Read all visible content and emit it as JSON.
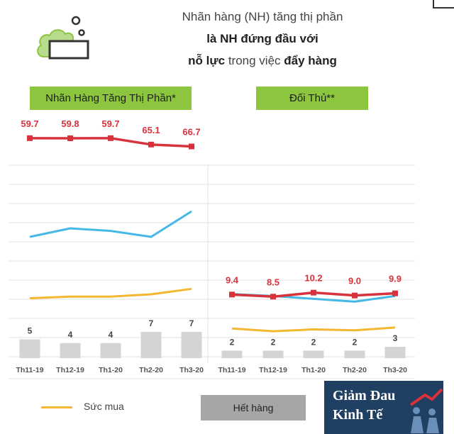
{
  "headline": {
    "line1": "Nhãn hàng (NH) tăng thị phần",
    "line2_bold": "là NH đứng đầu với",
    "line3_bold_a": "nỗ lực",
    "line3_mid": " trong việc ",
    "line3_bold_b": "đẩy hàng"
  },
  "panels": {
    "left_label": "Nhãn Hàng Tăng Thị Phần*",
    "right_label": "Đối Thủ**"
  },
  "legend": {
    "line_label": "Sức mua",
    "box_label": "Hết hàng"
  },
  "brand": {
    "line1": "Giảm Đau",
    "line2": "Kinh Tế"
  },
  "colors": {
    "market_share": "#d8323c",
    "blue_series": "#44b9e6",
    "purchasing_power": "#f5b731",
    "stockout": "#d4d4d4",
    "panel_label": "#8cc63f",
    "brand_bg": "#1f3f63"
  },
  "chart_data": [
    {
      "type": "line",
      "panel": "Nhãn Hàng Tăng Thị Phần*",
      "categories": [
        "Th11-19",
        "Th12-19",
        "Th1-20",
        "Th2-20",
        "Th3-20"
      ],
      "series": [
        {
          "kind": "line",
          "color": "#d8323c",
          "values": [
            59.7,
            59.8,
            59.7,
            65.1,
            66.7
          ],
          "labels": [
            "59.7",
            "59.8",
            "59.7",
            "65.1",
            "66.7"
          ]
        },
        {
          "kind": "line",
          "color": "#44b9e6",
          "values": [
            55,
            65,
            62,
            55,
            85
          ]
        },
        {
          "kind": "line",
          "name": "Sức mua",
          "color": "#f5b731",
          "values": [
            25,
            27,
            27,
            30,
            37
          ]
        },
        {
          "kind": "bar",
          "name": "Hết hàng",
          "color": "#d4d4d4",
          "values": [
            5,
            4,
            4,
            7,
            7
          ],
          "labels": [
            "5",
            "4",
            "4",
            "7",
            "7"
          ]
        }
      ],
      "grid": true
    },
    {
      "type": "line",
      "panel": "Đối Thủ**",
      "categories": [
        "Th11-19",
        "Th12-19",
        "Th1-20",
        "Th2-20",
        "Th3-20"
      ],
      "series": [
        {
          "kind": "line",
          "color": "#d8323c",
          "values": [
            9.4,
            8.5,
            10.2,
            9.0,
            9.9
          ],
          "labels": [
            "9.4",
            "8.5",
            "10.2",
            "9.0",
            "9.9"
          ]
        },
        {
          "kind": "line",
          "color": "#44b9e6",
          "values": [
            33,
            31,
            28,
            25,
            31
          ]
        },
        {
          "kind": "line",
          "name": "Sức mua",
          "color": "#f5b731",
          "values": [
            16,
            13,
            15,
            14,
            17
          ]
        },
        {
          "kind": "bar",
          "name": "Hết hàng",
          "color": "#d4d4d4",
          "values": [
            2,
            2,
            2,
            2,
            3
          ],
          "labels": [
            "2",
            "2",
            "2",
            "2",
            "3"
          ]
        }
      ],
      "grid": true
    }
  ]
}
